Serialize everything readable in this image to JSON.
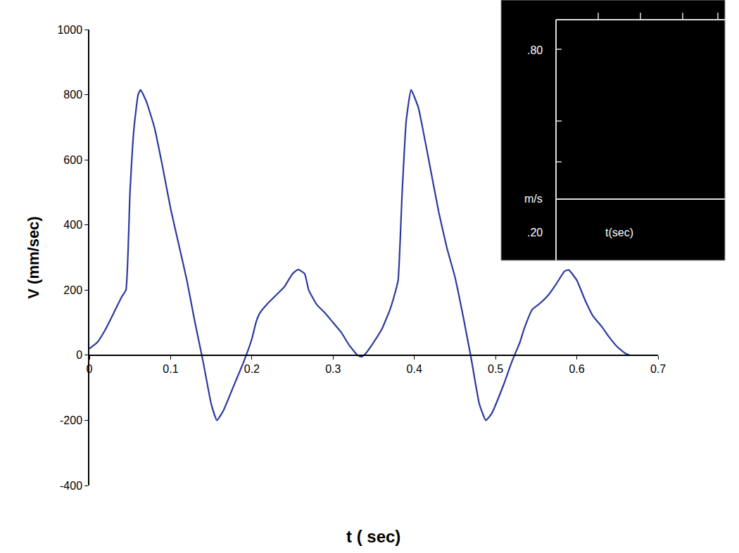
{
  "chart_data": {
    "type": "line",
    "xlabel": "t ( sec)",
    "ylabel": "V (mm/sec)",
    "color": "#2b3a9e",
    "x": [
      0,
      0.01,
      0.02,
      0.03,
      0.04,
      0.045,
      0.05,
      0.055,
      0.06,
      0.063,
      0.07,
      0.08,
      0.09,
      0.1,
      0.11,
      0.12,
      0.13,
      0.14,
      0.15,
      0.157,
      0.165,
      0.18,
      0.19,
      0.2,
      0.205,
      0.21,
      0.22,
      0.23,
      0.24,
      0.25,
      0.257,
      0.265,
      0.27,
      0.28,
      0.29,
      0.3,
      0.31,
      0.32,
      0.33,
      0.335,
      0.34,
      0.35,
      0.36,
      0.37,
      0.375,
      0.38,
      0.385,
      0.39,
      0.396,
      0.405,
      0.41,
      0.42,
      0.43,
      0.44,
      0.45,
      0.46,
      0.47,
      0.48,
      0.488,
      0.495,
      0.51,
      0.52,
      0.53,
      0.535,
      0.545,
      0.555,
      0.565,
      0.575,
      0.585,
      0.59,
      0.6,
      0.61,
      0.62,
      0.63,
      0.64,
      0.65,
      0.66,
      0.665
    ],
    "values": [
      20,
      40,
      80,
      130,
      180,
      200,
      500,
      700,
      800,
      815,
      780,
      700,
      580,
      450,
      340,
      230,
      100,
      -20,
      -150,
      -200,
      -170,
      -80,
      -20,
      50,
      100,
      130,
      160,
      185,
      210,
      250,
      263,
      250,
      200,
      155,
      130,
      100,
      70,
      30,
      0,
      -5,
      5,
      40,
      80,
      140,
      180,
      230,
      500,
      720,
      815,
      760,
      700,
      570,
      440,
      330,
      240,
      120,
      -10,
      -150,
      -200,
      -180,
      -90,
      -20,
      40,
      80,
      140,
      160,
      185,
      220,
      258,
      262,
      230,
      170,
      120,
      90,
      55,
      25,
      5,
      0
    ],
    "xlim": [
      0,
      0.7
    ],
    "xticks": [
      0,
      0.1,
      0.2,
      0.3,
      0.4,
      0.5,
      0.6,
      0.7
    ],
    "ylim": [
      -400,
      1000
    ],
    "yticks": [
      -400,
      -200,
      0,
      200,
      400,
      600,
      800,
      1000
    ],
    "grid": false,
    "annotations": [
      ".80",
      "m/s",
      ".20",
      "t(sec)"
    ]
  }
}
